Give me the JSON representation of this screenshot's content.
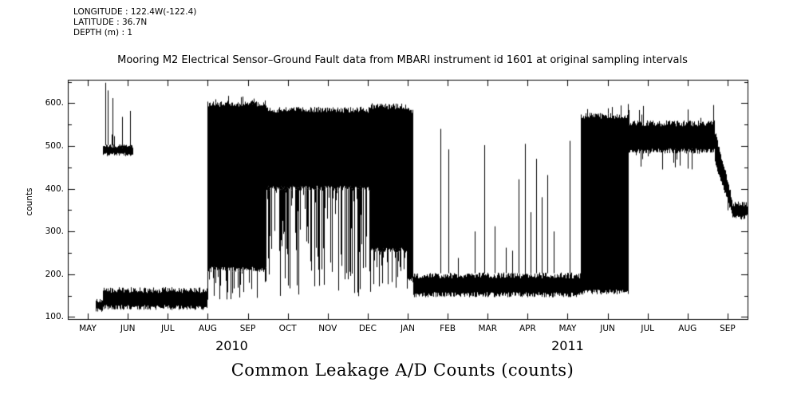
{
  "page": {
    "background": "#ffffff",
    "ink": "#000000"
  },
  "header": {
    "longitude": "LONGITUDE : 122.4W(-122.4)",
    "latitude": "LATITUDE : 36.7N",
    "depth": "DEPTH (m) : 1",
    "title": "Mooring M2 Electrical Sensor–Ground Fault data from MBARI instrument id 1601 at original sampling intervals"
  },
  "chart_data": {
    "type": "line",
    "title": "Mooring M2 Electrical Sensor–Ground Fault data from MBARI instrument id 1601 at original sampling intervals",
    "caption": "Common Leakage A/D Counts (counts)",
    "ylabel": "counts",
    "series_name": "Common Leakage A/D Counts",
    "grid": false,
    "x_tick_labels": [
      "MAY",
      "JUN",
      "JUL",
      "AUG",
      "SEP",
      "OCT",
      "NOV",
      "DEC",
      "JAN",
      "FEB",
      "MAR",
      "APR",
      "MAY",
      "JUN",
      "JUL",
      "AUG",
      "SEP"
    ],
    "y_tick_labels": [
      "100.",
      "200.",
      "300.",
      "400.",
      "500.",
      "600."
    ],
    "y_tick_values": [
      100,
      200,
      300,
      400,
      500,
      600
    ],
    "y_minor_tick_values": [
      150,
      250,
      350,
      450,
      550,
      650
    ],
    "year_labels": [
      {
        "text": "2010",
        "month": 4.1
      },
      {
        "text": "2011",
        "month": 12.5
      }
    ],
    "xlim_months": [
      0,
      17
    ],
    "ylim": [
      95,
      655
    ],
    "band_segments": [
      {
        "start": 0.68,
        "end": 0.86,
        "min": 112,
        "max": 142
      },
      {
        "start": 0.86,
        "end": 1.62,
        "min": 476,
        "max": 504,
        "spike_up_prob": 0.18,
        "spike_up_max": 620
      },
      {
        "start": 0.86,
        "end": 3.48,
        "min": 116,
        "max": 170
      },
      {
        "start": 3.48,
        "end": 4.95,
        "min": 205,
        "max": 606,
        "spike_up_prob": 0.1,
        "spike_up_max": 624,
        "spike_down_prob": 0.3,
        "spike_down_min": 138
      },
      {
        "start": 4.95,
        "end": 7.55,
        "min": 395,
        "max": 592,
        "spike_down_prob": 0.6,
        "spike_down_min": 148
      },
      {
        "start": 7.55,
        "end": 8.5,
        "min": 250,
        "max": 600,
        "spike_down_prob": 0.4,
        "spike_down_min": 158
      },
      {
        "start": 8.5,
        "end": 8.62,
        "min": 180,
        "max": 590
      },
      {
        "start": 8.62,
        "end": 12.82,
        "min": 146,
        "max": 204
      },
      {
        "start": 12.82,
        "end": 14.02,
        "min": 152,
        "max": 578,
        "spike_up_prob": 0.06,
        "spike_up_max": 600
      },
      {
        "start": 14.02,
        "end": 16.18,
        "min": 482,
        "max": 560,
        "spike_up_prob": 0.05,
        "spike_up_max": 597,
        "spike_down_prob": 0.15,
        "spike_down_min": 428
      },
      {
        "start": 16.18,
        "end": 16.62,
        "ramp": true,
        "min": 455,
        "max": 540,
        "min2": 330,
        "max2": 378,
        "spike_down_prob": 0.15,
        "spike_down_min": 285
      },
      {
        "start": 16.62,
        "end": 17.0,
        "min": 328,
        "max": 370
      }
    ],
    "spike_events": [
      {
        "t": 0.93,
        "v": 648
      },
      {
        "t": 1.0,
        "v": 630
      },
      {
        "t": 1.12,
        "v": 612
      },
      {
        "t": 9.32,
        "v": 540
      },
      {
        "t": 9.52,
        "v": 492
      },
      {
        "t": 9.75,
        "v": 238
      },
      {
        "t": 10.18,
        "v": 300
      },
      {
        "t": 10.42,
        "v": 502
      },
      {
        "t": 10.68,
        "v": 312
      },
      {
        "t": 10.95,
        "v": 262
      },
      {
        "t": 11.12,
        "v": 255
      },
      {
        "t": 11.28,
        "v": 422
      },
      {
        "t": 11.43,
        "v": 505
      },
      {
        "t": 11.58,
        "v": 345
      },
      {
        "t": 11.72,
        "v": 470
      },
      {
        "t": 11.85,
        "v": 380
      },
      {
        "t": 12.0,
        "v": 432
      },
      {
        "t": 12.15,
        "v": 300
      },
      {
        "t": 12.55,
        "v": 512
      }
    ]
  }
}
